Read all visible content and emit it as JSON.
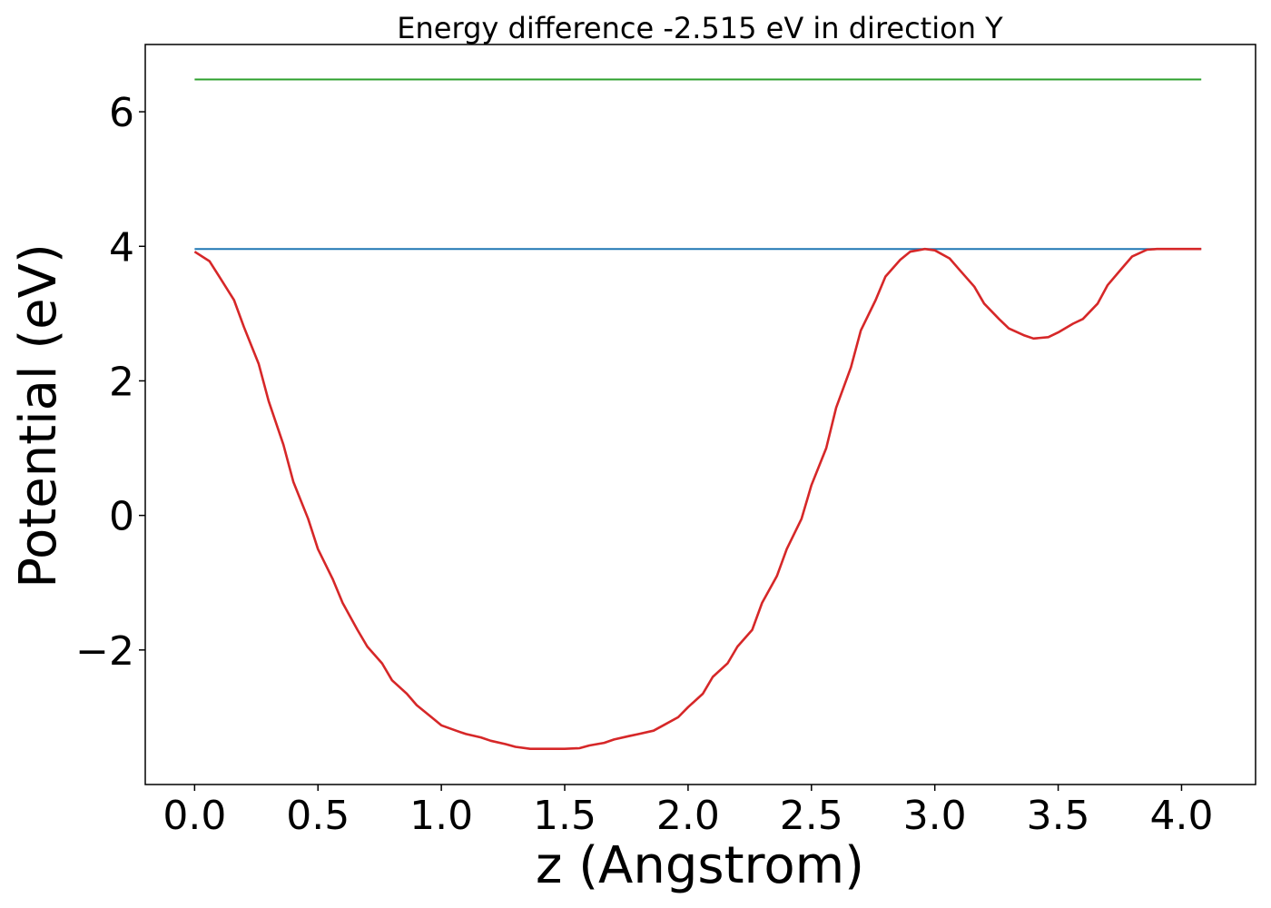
{
  "chart_data": {
    "type": "line",
    "title": "Energy difference -2.515 eV in direction Y",
    "xlabel": "z (Angstrom)",
    "ylabel": "Potential (eV)",
    "xlim": [
      -0.2,
      4.3
    ],
    "ylim": [
      -4.0,
      7.0
    ],
    "xticks": [
      0.0,
      0.5,
      1.0,
      1.5,
      2.0,
      2.5,
      3.0,
      3.5,
      4.0
    ],
    "xtick_labels": [
      "0.0",
      "0.5",
      "1.0",
      "1.5",
      "2.0",
      "2.5",
      "3.0",
      "3.5",
      "4.0"
    ],
    "yticks": [
      -2,
      0,
      2,
      4,
      6
    ],
    "ytick_labels": [
      "−2",
      "0",
      "2",
      "4",
      "6"
    ],
    "grid": false,
    "series": [
      {
        "color": "#2ca02c",
        "x": [
          0.0,
          4.08
        ],
        "y": [
          6.48,
          6.48
        ]
      },
      {
        "color": "#1f77b4",
        "x": [
          0.0,
          4.08
        ],
        "y": [
          3.96,
          3.96
        ]
      },
      {
        "color": "#d62728",
        "x": [
          0.0,
          0.06,
          0.1,
          0.16,
          0.2,
          0.26,
          0.3,
          0.36,
          0.4,
          0.46,
          0.5,
          0.56,
          0.6,
          0.66,
          0.7,
          0.76,
          0.8,
          0.86,
          0.9,
          0.96,
          1.0,
          1.06,
          1.1,
          1.16,
          1.2,
          1.26,
          1.3,
          1.36,
          1.4,
          1.46,
          1.5,
          1.56,
          1.6,
          1.66,
          1.7,
          1.76,
          1.8,
          1.86,
          1.9,
          1.96,
          2.0,
          2.06,
          2.1,
          2.16,
          2.2,
          2.26,
          2.3,
          2.36,
          2.4,
          2.46,
          2.5,
          2.56,
          2.6,
          2.66,
          2.7,
          2.76,
          2.8,
          2.86,
          2.9,
          2.96,
          3.0,
          3.06,
          3.1,
          3.16,
          3.2,
          3.26,
          3.3,
          3.36,
          3.4,
          3.46,
          3.5,
          3.56,
          3.6,
          3.66,
          3.7,
          3.76,
          3.8,
          3.86,
          3.9,
          3.96,
          4.0,
          4.06,
          4.08
        ],
        "y": [
          3.92,
          3.78,
          3.55,
          3.2,
          2.8,
          2.25,
          1.7,
          1.05,
          0.5,
          -0.05,
          -0.5,
          -0.95,
          -1.3,
          -1.7,
          -1.95,
          -2.2,
          -2.45,
          -2.65,
          -2.82,
          -3.0,
          -3.12,
          -3.2,
          -3.25,
          -3.3,
          -3.35,
          -3.4,
          -3.44,
          -3.47,
          -3.47,
          -3.47,
          -3.47,
          -3.46,
          -3.42,
          -3.38,
          -3.33,
          -3.28,
          -3.25,
          -3.2,
          -3.12,
          -3.0,
          -2.85,
          -2.65,
          -2.4,
          -2.2,
          -1.95,
          -1.7,
          -1.3,
          -0.9,
          -0.5,
          -0.05,
          0.45,
          1.0,
          1.6,
          2.2,
          2.75,
          3.2,
          3.55,
          3.8,
          3.92,
          3.96,
          3.94,
          3.82,
          3.65,
          3.4,
          3.15,
          2.92,
          2.78,
          2.68,
          2.63,
          2.65,
          2.72,
          2.85,
          2.92,
          3.15,
          3.42,
          3.68,
          3.85,
          3.95,
          3.96,
          3.96,
          3.96,
          3.96,
          3.96
        ]
      }
    ]
  }
}
